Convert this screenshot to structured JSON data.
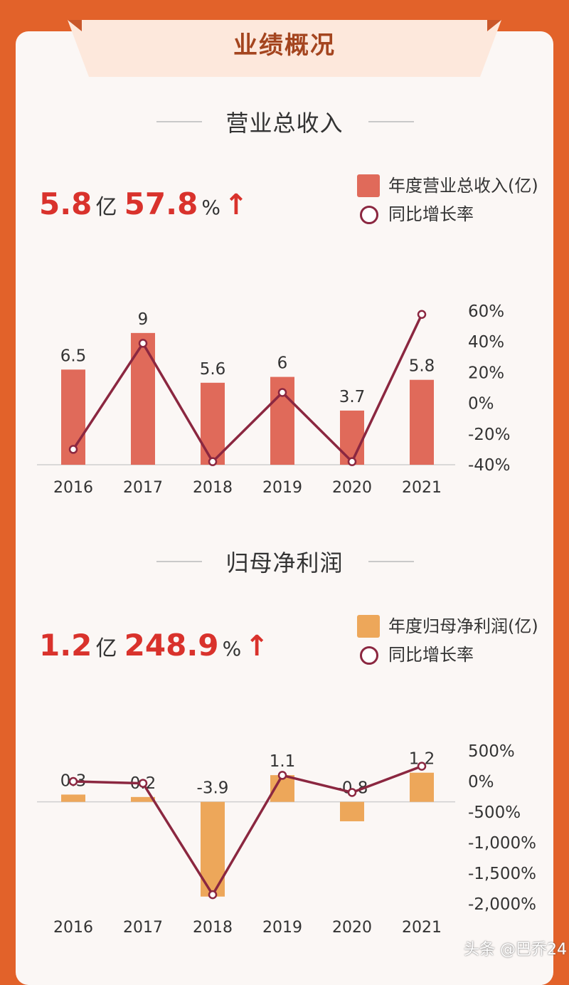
{
  "page": {
    "banner_title": "业绩概况",
    "watermark": "头条 @巴乔24"
  },
  "colors": {
    "accent": "#d9322c",
    "revenue_bar": "#e06a5a",
    "profit_bar": "#eda75a",
    "line": "#8b2740"
  },
  "revenue": {
    "section_title": "营业总收入",
    "headline_value": "5.8",
    "headline_unit": "亿",
    "headline_growth": "57.8",
    "headline_growth_unit": "%",
    "headline_arrow": "↑",
    "legend_bar": "年度营业总收入(亿)",
    "legend_line": "同比增长率"
  },
  "profit": {
    "section_title": "归母净利润",
    "headline_value": "1.2",
    "headline_unit": "亿",
    "headline_growth": "248.9",
    "headline_growth_unit": "%",
    "headline_arrow": "↑",
    "legend_bar": "年度归母净利润(亿)",
    "legend_line": "同比增长率"
  },
  "chart_data": [
    {
      "type": "bar",
      "categories": [
        "2016",
        "2017",
        "2018",
        "2019",
        "2020",
        "2021"
      ],
      "series": [
        {
          "name": "年度营业总收入(亿)",
          "type": "bar",
          "values": [
            6.5,
            9,
            5.6,
            6,
            3.7,
            5.8
          ],
          "labels": [
            "6.5",
            "9",
            "5.6",
            "6",
            "3.7",
            "5.8"
          ]
        },
        {
          "name": "同比增长率",
          "type": "line",
          "axis": "right",
          "values": [
            -30,
            39,
            -38,
            7,
            -38,
            57.8
          ]
        }
      ],
      "y_right_ticks": [
        "60%",
        "40%",
        "20%",
        "0%",
        "-20%",
        "-40%"
      ],
      "y_right_range": [
        -40,
        60
      ],
      "y_left_range": [
        0,
        10.5
      ]
    },
    {
      "type": "bar",
      "categories": [
        "2016",
        "2017",
        "2018",
        "2019",
        "2020",
        "2021"
      ],
      "series": [
        {
          "name": "年度归母净利润(亿)",
          "type": "bar",
          "values": [
            0.3,
            0.2,
            -3.9,
            1.1,
            -0.8,
            1.2
          ],
          "labels": [
            "0.3",
            "0.2",
            "-3.9",
            "1.1",
            "-0.8",
            "1.2"
          ]
        },
        {
          "name": "同比增长率",
          "type": "line",
          "axis": "right",
          "values": [
            0,
            -30,
            -1850,
            100,
            -180,
            248.9
          ]
        }
      ],
      "y_right_ticks": [
        "500%",
        "0%",
        "-500%",
        "-1,000%",
        "-1,500%",
        "-2,000%"
      ],
      "y_right_range": [
        -2000,
        500
      ],
      "y_left_range": [
        -4.2,
        2.1
      ]
    }
  ]
}
